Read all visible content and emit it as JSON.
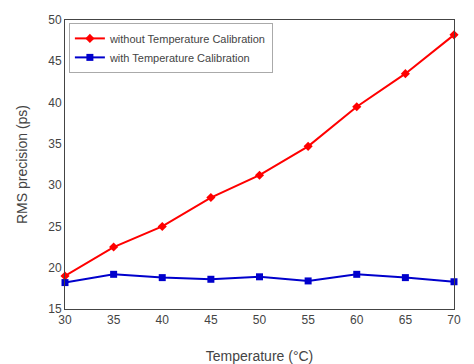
{
  "chart_data": {
    "type": "line",
    "xlabel": "Temperature (°C)",
    "ylabel": "RMS precision (ps)",
    "x": [
      30,
      35,
      40,
      45,
      50,
      55,
      60,
      65,
      70
    ],
    "series": [
      {
        "name": "without Temperature Calibration",
        "color": "#ff0000",
        "marker": "diamond",
        "values": [
          19.0,
          22.5,
          25.0,
          28.5,
          31.2,
          34.7,
          39.5,
          43.5,
          48.2
        ]
      },
      {
        "name": "with Temperature Calibration",
        "color": "#0000cc",
        "marker": "square",
        "values": [
          18.2,
          19.2,
          18.8,
          18.6,
          18.9,
          18.4,
          19.2,
          18.8,
          18.3
        ]
      }
    ],
    "xlim": [
      30,
      70
    ],
    "ylim": [
      15,
      50
    ],
    "xticks": [
      30,
      35,
      40,
      45,
      50,
      55,
      60,
      65,
      70
    ],
    "yticks": [
      15,
      20,
      25,
      30,
      35,
      40,
      45,
      50
    ],
    "grid": false,
    "legend": "upper left"
  }
}
